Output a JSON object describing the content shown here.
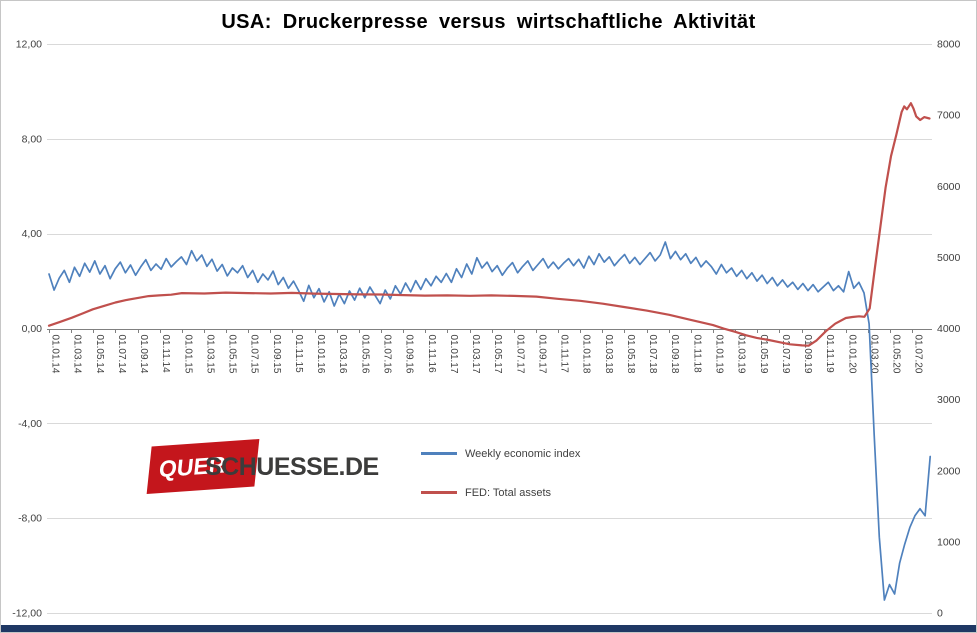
{
  "title": "USA: Druckerpresse versus wirtschaftliche Aktivität",
  "logo": {
    "part1": "QUER",
    "part2": "SCHUESSE.DE",
    "red": "#c4161c",
    "text_color": "#3c3c3b"
  },
  "colors": {
    "bottom_bar": "#1f3864"
  },
  "chart_data": {
    "type": "line",
    "title": "USA: Druckerpresse versus wirtschaftliche Aktivität",
    "grid": "horizontal",
    "legend_position": "center",
    "colors": {
      "grid": "#d9d9d9",
      "axis": "#808080",
      "text": "#404040"
    },
    "x": {
      "min": 2014.0,
      "max": 2020.65,
      "tick_step_years": 0.1666667,
      "tick_labels": [
        "01.01.14",
        "01.03.14",
        "01.05.14",
        "01.07.14",
        "01.09.14",
        "01.11.14",
        "01.01.15",
        "01.03.15",
        "01.05.15",
        "01.07.15",
        "01.09.15",
        "01.11.15",
        "01.01.16",
        "01.03.16",
        "01.05.16",
        "01.07.16",
        "01.09.16",
        "01.11.16",
        "01.01.17",
        "01.03.17",
        "01.05.17",
        "01.07.17",
        "01.09.17",
        "01.11.17",
        "01.01.18",
        "01.03.18",
        "01.05.18",
        "01.07.18",
        "01.09.18",
        "01.11.18",
        "01.01.19",
        "01.03.19",
        "01.05.19",
        "01.07.19",
        "01.09.19",
        "01.11.19",
        "01.01.20",
        "01.03.20",
        "01.05.20",
        "01.07.20"
      ]
    },
    "x_axis_cross_at_left_value": 0,
    "y_left": {
      "min": -12,
      "max": 12,
      "tick_values": [
        12,
        8,
        4,
        0,
        -4,
        -8,
        -12
      ],
      "tick_labels": [
        "12,00",
        "8,00",
        "4,00",
        "0,00",
        "-4,00",
        "-8,00",
        "-12,00"
      ]
    },
    "y_right": {
      "min": 0,
      "max": 8000,
      "tick_values": [
        8000,
        7000,
        6000,
        5000,
        4000,
        3000,
        2000,
        1000,
        0
      ],
      "tick_labels": [
        "8000",
        "7000",
        "6000",
        "5000",
        "4000",
        "3000",
        "2000",
        "1000",
        "0"
      ]
    },
    "series": [
      {
        "name": "Weekly economic index",
        "axis": "left",
        "color": "#4F81BD",
        "x_start": 2014.0,
        "x_step_years": 0.038356,
        "values": [
          2.3,
          1.62,
          2.12,
          2.45,
          1.95,
          2.58,
          2.2,
          2.75,
          2.38,
          2.85,
          2.3,
          2.65,
          2.1,
          2.52,
          2.8,
          2.35,
          2.68,
          2.25,
          2.6,
          2.9,
          2.45,
          2.72,
          2.5,
          2.95,
          2.6,
          2.82,
          3.02,
          2.7,
          3.28,
          2.85,
          3.1,
          2.62,
          2.92,
          2.42,
          2.7,
          2.22,
          2.55,
          2.35,
          2.65,
          2.15,
          2.45,
          1.95,
          2.3,
          2.05,
          2.42,
          1.85,
          2.15,
          1.7,
          2.0,
          1.6,
          1.15,
          1.82,
          1.3,
          1.68,
          1.12,
          1.55,
          0.95,
          1.45,
          1.05,
          1.58,
          1.2,
          1.7,
          1.3,
          1.75,
          1.4,
          1.05,
          1.62,
          1.25,
          1.8,
          1.45,
          1.92,
          1.55,
          2.02,
          1.65,
          2.1,
          1.8,
          2.2,
          1.95,
          2.32,
          1.95,
          2.52,
          2.15,
          2.72,
          2.3,
          2.98,
          2.55,
          2.8,
          2.4,
          2.65,
          2.25,
          2.55,
          2.78,
          2.35,
          2.62,
          2.85,
          2.45,
          2.7,
          2.95,
          2.55,
          2.8,
          2.52,
          2.75,
          2.95,
          2.65,
          2.92,
          2.55,
          3.05,
          2.7,
          3.15,
          2.8,
          3.02,
          2.65,
          2.9,
          3.12,
          2.75,
          3.0,
          2.7,
          2.95,
          3.2,
          2.85,
          3.1,
          3.65,
          2.95,
          3.25,
          2.9,
          3.15,
          2.75,
          3.0,
          2.6,
          2.85,
          2.62,
          2.3,
          2.7,
          2.35,
          2.55,
          2.2,
          2.45,
          2.1,
          2.35,
          2.0,
          2.25,
          1.9,
          2.15,
          1.8,
          2.05,
          1.75,
          1.95,
          1.65,
          1.9,
          1.6,
          1.85,
          1.55,
          1.75,
          1.95,
          1.6,
          1.8,
          1.55,
          2.4,
          1.7,
          1.95,
          1.5,
          0.2,
          -4.5,
          -8.8,
          -11.45,
          -10.8,
          -11.2,
          -9.9,
          -9.1,
          -8.4,
          -7.9,
          -7.6,
          -7.9,
          -5.4
        ]
      },
      {
        "name": "FED: Total assets",
        "axis": "right",
        "color": "#C0504D",
        "points": [
          [
            2014.0,
            4040
          ],
          [
            2014.08,
            4090
          ],
          [
            2014.17,
            4150
          ],
          [
            2014.25,
            4210
          ],
          [
            2014.33,
            4270
          ],
          [
            2014.42,
            4320
          ],
          [
            2014.5,
            4365
          ],
          [
            2014.58,
            4400
          ],
          [
            2014.67,
            4430
          ],
          [
            2014.75,
            4455
          ],
          [
            2014.83,
            4465
          ],
          [
            2014.92,
            4475
          ],
          [
            2015.0,
            4498
          ],
          [
            2015.17,
            4492
          ],
          [
            2015.33,
            4505
          ],
          [
            2015.5,
            4498
          ],
          [
            2015.67,
            4492
          ],
          [
            2015.83,
            4500
          ],
          [
            2016.0,
            4490
          ],
          [
            2016.17,
            4485
          ],
          [
            2016.33,
            4480
          ],
          [
            2016.5,
            4478
          ],
          [
            2016.67,
            4470
          ],
          [
            2016.83,
            4462
          ],
          [
            2017.0,
            4465
          ],
          [
            2017.17,
            4460
          ],
          [
            2017.33,
            4465
          ],
          [
            2017.5,
            4458
          ],
          [
            2017.67,
            4448
          ],
          [
            2017.83,
            4418
          ],
          [
            2018.0,
            4390
          ],
          [
            2018.17,
            4348
          ],
          [
            2018.33,
            4302
          ],
          [
            2018.5,
            4252
          ],
          [
            2018.67,
            4192
          ],
          [
            2018.83,
            4122
          ],
          [
            2019.0,
            4048
          ],
          [
            2019.08,
            3998
          ],
          [
            2019.17,
            3952
          ],
          [
            2019.25,
            3905
          ],
          [
            2019.33,
            3868
          ],
          [
            2019.42,
            3838
          ],
          [
            2019.5,
            3808
          ],
          [
            2019.58,
            3778
          ],
          [
            2019.67,
            3762
          ],
          [
            2019.72,
            3758
          ],
          [
            2019.78,
            3832
          ],
          [
            2019.85,
            3962
          ],
          [
            2019.92,
            4068
          ],
          [
            2020.0,
            4148
          ],
          [
            2020.05,
            4162
          ],
          [
            2020.1,
            4172
          ],
          [
            2020.14,
            4165
          ],
          [
            2020.18,
            4282
          ],
          [
            2020.22,
            4862
          ],
          [
            2020.26,
            5422
          ],
          [
            2020.3,
            5982
          ],
          [
            2020.34,
            6422
          ],
          [
            2020.38,
            6722
          ],
          [
            2020.42,
            7042
          ],
          [
            2020.44,
            7122
          ],
          [
            2020.46,
            7082
          ],
          [
            2020.49,
            7168
          ],
          [
            2020.51,
            7092
          ],
          [
            2020.53,
            6982
          ],
          [
            2020.56,
            6932
          ],
          [
            2020.59,
            6972
          ],
          [
            2020.63,
            6952
          ]
        ]
      }
    ]
  }
}
